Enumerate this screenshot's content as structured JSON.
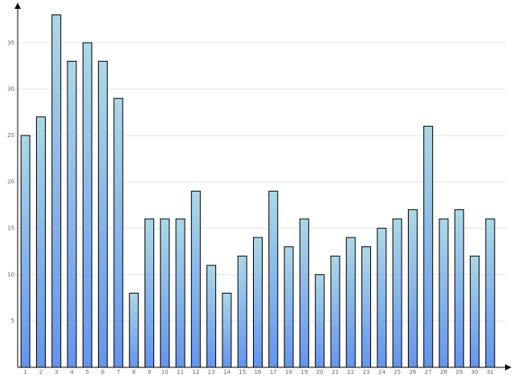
{
  "chart_data": {
    "type": "bar",
    "categories": [
      "1",
      "2",
      "3",
      "4",
      "5",
      "6",
      "7",
      "8",
      "9",
      "10",
      "11",
      "12",
      "13",
      "14",
      "15",
      "16",
      "17",
      "18",
      "19",
      "20",
      "21",
      "22",
      "23",
      "24",
      "25",
      "26",
      "27",
      "28",
      "29",
      "30",
      "31"
    ],
    "values": [
      25,
      27,
      38,
      33,
      35,
      33,
      29,
      8,
      16,
      16,
      16,
      19,
      11,
      8,
      12,
      14,
      19,
      13,
      16,
      10,
      12,
      14,
      13,
      15,
      16,
      17,
      26,
      16,
      17,
      12,
      16
    ],
    "color": [
      "#add8e6",
      "#6495ed"
    ],
    "ylim": [
      0,
      39
    ],
    "yticks": [
      5,
      10,
      15,
      20,
      25,
      30,
      35
    ],
    "grid": true
  }
}
